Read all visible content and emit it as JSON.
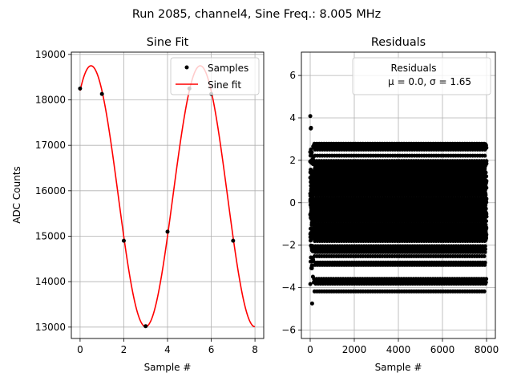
{
  "suptitle": "Run 2085, channel4, Sine Freq.: 8.005 MHz",
  "chart_data": [
    {
      "type": "line",
      "title": "Sine Fit",
      "xlabel": "Sample #",
      "ylabel": "ADC Counts",
      "xlim": [
        -0.4,
        8.4
      ],
      "ylim": [
        12750,
        19050
      ],
      "xticks": [
        0,
        2,
        4,
        6,
        8
      ],
      "yticks": [
        13000,
        14000,
        15000,
        16000,
        17000,
        18000,
        19000
      ],
      "grid": true,
      "legend_position": "top-right",
      "samples": {
        "name": "Samples",
        "color": "#000000",
        "x": [
          0,
          1,
          2,
          3,
          4,
          5,
          6,
          7
        ],
        "y": [
          18250,
          18130,
          14900,
          13020,
          15100,
          18250,
          18130,
          14900
        ]
      },
      "fit": {
        "name": "Sine fit",
        "color": "#ff0000",
        "offset": 15880,
        "amplitude": 2870,
        "period": 4.996,
        "peak_x": 0.5,
        "x_range": [
          0,
          8
        ]
      }
    },
    {
      "type": "scatter",
      "title": "Residuals",
      "xlabel": "Sample #",
      "ylabel": "",
      "xlim": [
        -400,
        8400
      ],
      "ylim": [
        -6.4,
        7.1
      ],
      "xticks": [
        0,
        2000,
        4000,
        6000,
        8000
      ],
      "yticks": [
        -6,
        -4,
        -2,
        0,
        2,
        4,
        6
      ],
      "grid": true,
      "legend_position": "top-right",
      "series": [
        {
          "name": "Residuals",
          "color": "#000000",
          "count": 8000,
          "mean": 0.0,
          "std": 1.65,
          "annotation": "μ = 0.0, σ = 1.65"
        }
      ]
    }
  ]
}
